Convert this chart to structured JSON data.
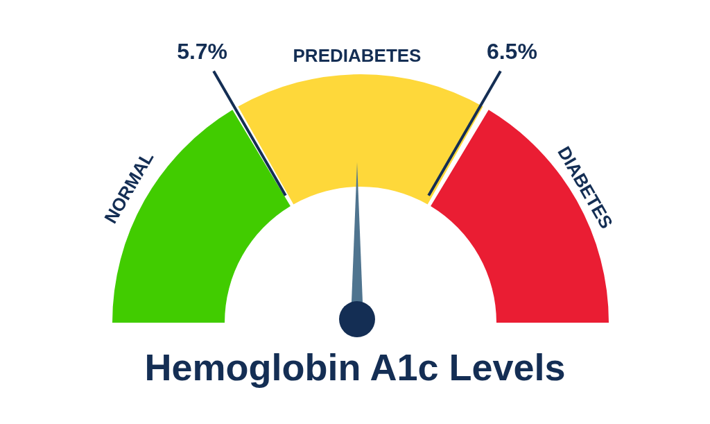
{
  "chart_data": {
    "type": "donut",
    "title": "Hemoglobin A1c Levels",
    "categories": [
      "NORMAL",
      "PREDIABETES",
      "DIABETES"
    ],
    "values": [
      33.3,
      33.4,
      33.3
    ],
    "colors": [
      "#41cc00",
      "#fed83a",
      "#ea1d33"
    ],
    "needle": "PREDIABETES",
    "annotations": [
      "5.7%",
      "6.5%"
    ]
  }
}
